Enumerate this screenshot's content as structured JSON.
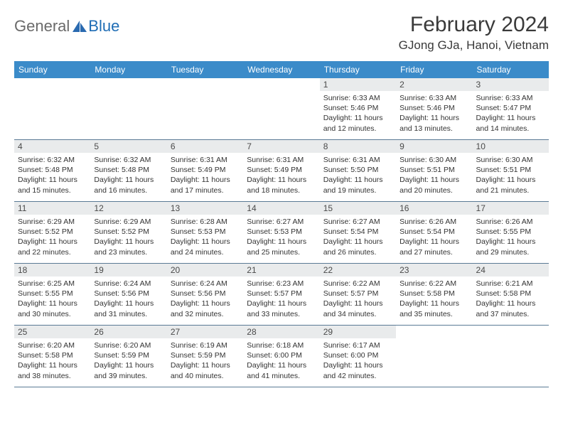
{
  "logo": {
    "general": "General",
    "blue": "Blue"
  },
  "title": "February 2024",
  "location": "GJong GJa, Hanoi, Vietnam",
  "day_headers": [
    "Sunday",
    "Monday",
    "Tuesday",
    "Wednesday",
    "Thursday",
    "Friday",
    "Saturday"
  ],
  "header_bg": "#3b8bc9",
  "daynum_bg": "#e9ebec",
  "row_border": "#5a7a95",
  "weeks": [
    [
      {
        "n": "",
        "sr": "",
        "ss": "",
        "dl": ""
      },
      {
        "n": "",
        "sr": "",
        "ss": "",
        "dl": ""
      },
      {
        "n": "",
        "sr": "",
        "ss": "",
        "dl": ""
      },
      {
        "n": "",
        "sr": "",
        "ss": "",
        "dl": ""
      },
      {
        "n": "1",
        "sr": "Sunrise: 6:33 AM",
        "ss": "Sunset: 5:46 PM",
        "dl": "Daylight: 11 hours and 12 minutes."
      },
      {
        "n": "2",
        "sr": "Sunrise: 6:33 AM",
        "ss": "Sunset: 5:46 PM",
        "dl": "Daylight: 11 hours and 13 minutes."
      },
      {
        "n": "3",
        "sr": "Sunrise: 6:33 AM",
        "ss": "Sunset: 5:47 PM",
        "dl": "Daylight: 11 hours and 14 minutes."
      }
    ],
    [
      {
        "n": "4",
        "sr": "Sunrise: 6:32 AM",
        "ss": "Sunset: 5:48 PM",
        "dl": "Daylight: 11 hours and 15 minutes."
      },
      {
        "n": "5",
        "sr": "Sunrise: 6:32 AM",
        "ss": "Sunset: 5:48 PM",
        "dl": "Daylight: 11 hours and 16 minutes."
      },
      {
        "n": "6",
        "sr": "Sunrise: 6:31 AM",
        "ss": "Sunset: 5:49 PM",
        "dl": "Daylight: 11 hours and 17 minutes."
      },
      {
        "n": "7",
        "sr": "Sunrise: 6:31 AM",
        "ss": "Sunset: 5:49 PM",
        "dl": "Daylight: 11 hours and 18 minutes."
      },
      {
        "n": "8",
        "sr": "Sunrise: 6:31 AM",
        "ss": "Sunset: 5:50 PM",
        "dl": "Daylight: 11 hours and 19 minutes."
      },
      {
        "n": "9",
        "sr": "Sunrise: 6:30 AM",
        "ss": "Sunset: 5:51 PM",
        "dl": "Daylight: 11 hours and 20 minutes."
      },
      {
        "n": "10",
        "sr": "Sunrise: 6:30 AM",
        "ss": "Sunset: 5:51 PM",
        "dl": "Daylight: 11 hours and 21 minutes."
      }
    ],
    [
      {
        "n": "11",
        "sr": "Sunrise: 6:29 AM",
        "ss": "Sunset: 5:52 PM",
        "dl": "Daylight: 11 hours and 22 minutes."
      },
      {
        "n": "12",
        "sr": "Sunrise: 6:29 AM",
        "ss": "Sunset: 5:52 PM",
        "dl": "Daylight: 11 hours and 23 minutes."
      },
      {
        "n": "13",
        "sr": "Sunrise: 6:28 AM",
        "ss": "Sunset: 5:53 PM",
        "dl": "Daylight: 11 hours and 24 minutes."
      },
      {
        "n": "14",
        "sr": "Sunrise: 6:27 AM",
        "ss": "Sunset: 5:53 PM",
        "dl": "Daylight: 11 hours and 25 minutes."
      },
      {
        "n": "15",
        "sr": "Sunrise: 6:27 AM",
        "ss": "Sunset: 5:54 PM",
        "dl": "Daylight: 11 hours and 26 minutes."
      },
      {
        "n": "16",
        "sr": "Sunrise: 6:26 AM",
        "ss": "Sunset: 5:54 PM",
        "dl": "Daylight: 11 hours and 27 minutes."
      },
      {
        "n": "17",
        "sr": "Sunrise: 6:26 AM",
        "ss": "Sunset: 5:55 PM",
        "dl": "Daylight: 11 hours and 29 minutes."
      }
    ],
    [
      {
        "n": "18",
        "sr": "Sunrise: 6:25 AM",
        "ss": "Sunset: 5:55 PM",
        "dl": "Daylight: 11 hours and 30 minutes."
      },
      {
        "n": "19",
        "sr": "Sunrise: 6:24 AM",
        "ss": "Sunset: 5:56 PM",
        "dl": "Daylight: 11 hours and 31 minutes."
      },
      {
        "n": "20",
        "sr": "Sunrise: 6:24 AM",
        "ss": "Sunset: 5:56 PM",
        "dl": "Daylight: 11 hours and 32 minutes."
      },
      {
        "n": "21",
        "sr": "Sunrise: 6:23 AM",
        "ss": "Sunset: 5:57 PM",
        "dl": "Daylight: 11 hours and 33 minutes."
      },
      {
        "n": "22",
        "sr": "Sunrise: 6:22 AM",
        "ss": "Sunset: 5:57 PM",
        "dl": "Daylight: 11 hours and 34 minutes."
      },
      {
        "n": "23",
        "sr": "Sunrise: 6:22 AM",
        "ss": "Sunset: 5:58 PM",
        "dl": "Daylight: 11 hours and 35 minutes."
      },
      {
        "n": "24",
        "sr": "Sunrise: 6:21 AM",
        "ss": "Sunset: 5:58 PM",
        "dl": "Daylight: 11 hours and 37 minutes."
      }
    ],
    [
      {
        "n": "25",
        "sr": "Sunrise: 6:20 AM",
        "ss": "Sunset: 5:58 PM",
        "dl": "Daylight: 11 hours and 38 minutes."
      },
      {
        "n": "26",
        "sr": "Sunrise: 6:20 AM",
        "ss": "Sunset: 5:59 PM",
        "dl": "Daylight: 11 hours and 39 minutes."
      },
      {
        "n": "27",
        "sr": "Sunrise: 6:19 AM",
        "ss": "Sunset: 5:59 PM",
        "dl": "Daylight: 11 hours and 40 minutes."
      },
      {
        "n": "28",
        "sr": "Sunrise: 6:18 AM",
        "ss": "Sunset: 6:00 PM",
        "dl": "Daylight: 11 hours and 41 minutes."
      },
      {
        "n": "29",
        "sr": "Sunrise: 6:17 AM",
        "ss": "Sunset: 6:00 PM",
        "dl": "Daylight: 11 hours and 42 minutes."
      },
      {
        "n": "",
        "sr": "",
        "ss": "",
        "dl": ""
      },
      {
        "n": "",
        "sr": "",
        "ss": "",
        "dl": ""
      }
    ]
  ]
}
